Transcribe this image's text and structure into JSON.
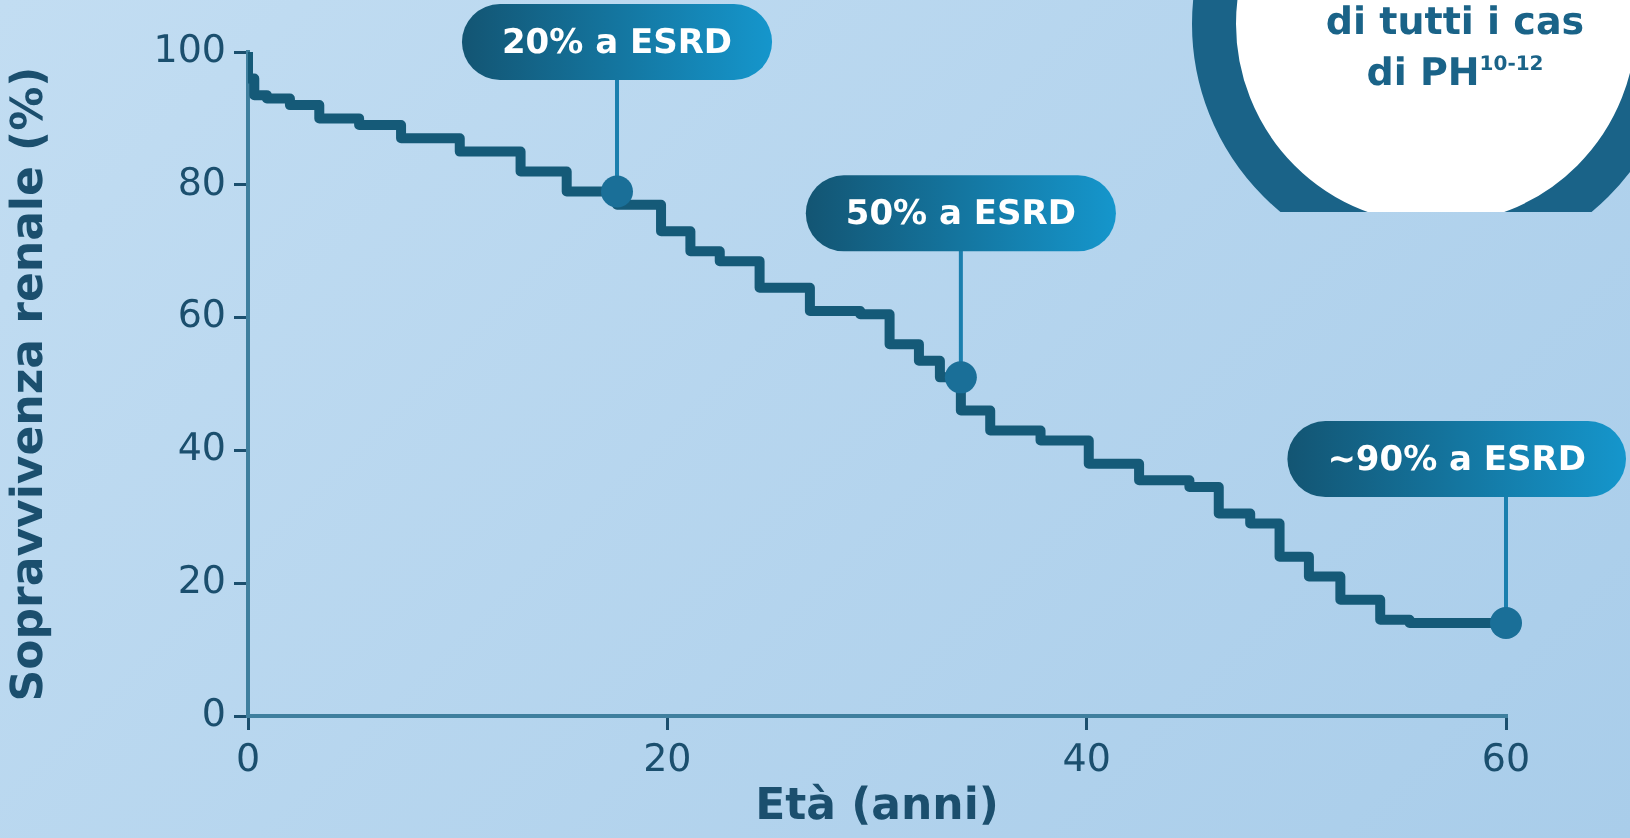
{
  "chart_data": {
    "type": "step",
    "xlabel": "Età (anni)",
    "ylabel": "Sopravvivenza renale (%)",
    "color": "#155a78",
    "x": [
      0,
      0.3,
      0.9,
      2,
      3.4,
      5.3,
      7.3,
      10.1,
      13,
      15.2,
      17.6,
      19.7,
      21.1,
      22.5,
      24.4,
      26.8,
      29.2,
      30.6,
      32,
      33,
      34,
      35.4,
      37.8,
      40.1,
      42.5,
      44.9,
      46.3,
      47.8,
      49.2,
      50.6,
      52.1,
      54,
      55.4,
      56.9,
      60
    ],
    "values": [
      100,
      96,
      93.5,
      93,
      92,
      90,
      89,
      87,
      85,
      82,
      79,
      77,
      73,
      70,
      68.5,
      64.5,
      61,
      60.5,
      56,
      53.5,
      51,
      46,
      43,
      41.5,
      38,
      35.5,
      34.5,
      30.5,
      29,
      24,
      21,
      17.5,
      14.5,
      14,
      14
    ],
    "xlim": [
      0,
      60
    ],
    "xticks": [
      0,
      20,
      40,
      60
    ],
    "ylim": [
      0,
      100
    ],
    "yticks": [
      0,
      20,
      40,
      60,
      80,
      100
    ],
    "annotations": [
      {
        "text": "20% a ESRD",
        "x": 17.6,
        "y": 79
      },
      {
        "text": "50% a ESRD",
        "x": 34,
        "y": 51
      },
      {
        "text": "~90% a ESRD",
        "x": 60,
        "y": 14
      },
      "di tutti i cas",
      "di PH$^{10-12}$"
    ]
  }
}
